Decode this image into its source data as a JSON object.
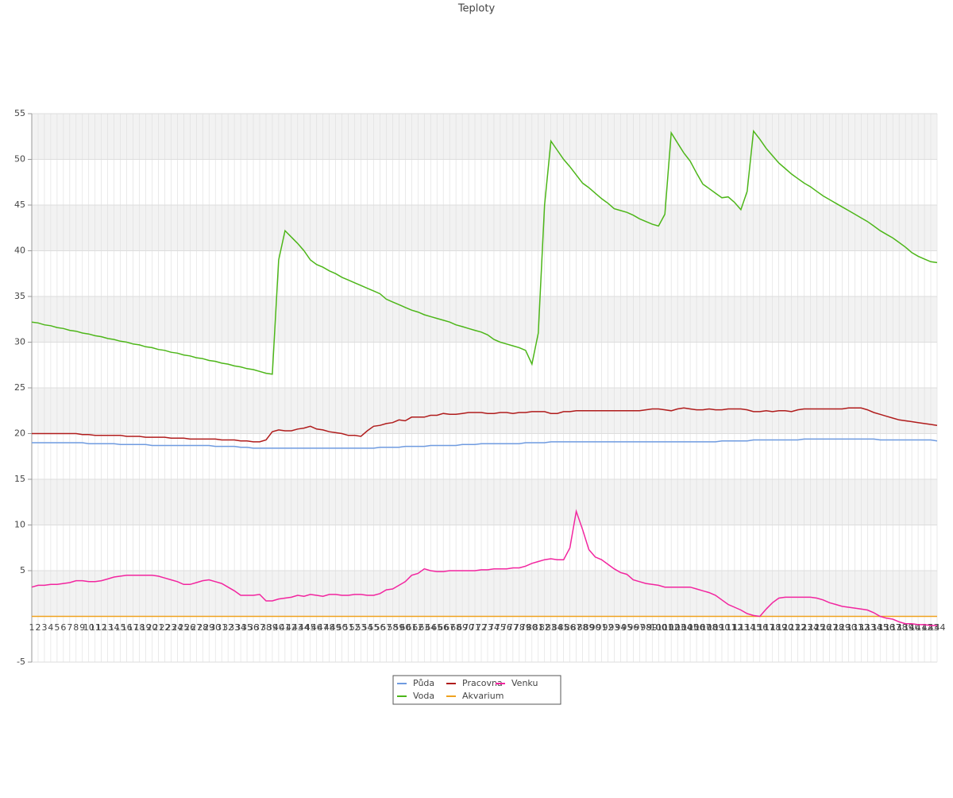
{
  "chart_data": {
    "type": "line",
    "title": "Teploty",
    "categories": [
      "1",
      "2",
      "3",
      "4",
      "5",
      "6",
      "7",
      "8",
      "9",
      "10",
      "11",
      "12",
      "13",
      "14",
      "15",
      "16",
      "17",
      "18",
      "19",
      "20",
      "21",
      "22",
      "23",
      "24",
      "25",
      "26",
      "27",
      "28",
      "29",
      "30",
      "31",
      "32",
      "33",
      "34",
      "35",
      "36",
      "37",
      "38",
      "39",
      "40",
      "41",
      "42",
      "43",
      "44",
      "45",
      "46",
      "47",
      "48",
      "49",
      "50",
      "51",
      "52",
      "53",
      "54",
      "55",
      "56",
      "57",
      "58",
      "59",
      "60",
      "61",
      "62",
      "63",
      "64",
      "65",
      "66",
      "67",
      "68",
      "69",
      "70",
      "71",
      "72",
      "73",
      "74",
      "75",
      "76",
      "77",
      "78",
      "79",
      "80",
      "81",
      "82",
      "83",
      "84",
      "85",
      "86",
      "87",
      "88",
      "89",
      "90",
      "91",
      "92",
      "93",
      "94",
      "95",
      "96",
      "97",
      "98",
      "99",
      "100",
      "101",
      "102",
      "103",
      "104",
      "105",
      "106",
      "107",
      "108",
      "109",
      "110",
      "111",
      "112",
      "113",
      "114",
      "115",
      "116",
      "117",
      "118",
      "119",
      "120",
      "121",
      "122",
      "123",
      "124",
      "125",
      "126",
      "127",
      "128",
      "129",
      "130",
      "131",
      "132",
      "133",
      "134",
      "135",
      "136",
      "137",
      "138",
      "139",
      "140",
      "141",
      "142",
      "143",
      "144"
    ],
    "series": [
      {
        "name": "Půda",
        "color": "#6f9be0",
        "values": [
          19,
          19,
          19,
          19,
          19,
          19,
          19,
          19,
          19,
          18.9,
          18.9,
          18.9,
          18.9,
          18.9,
          18.8,
          18.8,
          18.8,
          18.8,
          18.8,
          18.7,
          18.7,
          18.7,
          18.7,
          18.7,
          18.7,
          18.7,
          18.7,
          18.7,
          18.7,
          18.6,
          18.6,
          18.6,
          18.6,
          18.5,
          18.5,
          18.4,
          18.4,
          18.4,
          18.4,
          18.4,
          18.4,
          18.4,
          18.4,
          18.4,
          18.4,
          18.4,
          18.4,
          18.4,
          18.4,
          18.4,
          18.4,
          18.4,
          18.4,
          18.4,
          18.4,
          18.5,
          18.5,
          18.5,
          18.5,
          18.6,
          18.6,
          18.6,
          18.6,
          18.7,
          18.7,
          18.7,
          18.7,
          18.7,
          18.8,
          18.8,
          18.8,
          18.9,
          18.9,
          18.9,
          18.9,
          18.9,
          18.9,
          18.9,
          19,
          19,
          19,
          19,
          19.1,
          19.1,
          19.1,
          19.1,
          19.1,
          19.1,
          19.1,
          19.1,
          19.1,
          19.1,
          19.1,
          19.1,
          19.1,
          19.1,
          19.1,
          19.1,
          19.1,
          19.1,
          19.1,
          19.1,
          19.1,
          19.1,
          19.1,
          19.1,
          19.1,
          19.1,
          19.1,
          19.2,
          19.2,
          19.2,
          19.2,
          19.2,
          19.3,
          19.3,
          19.3,
          19.3,
          19.3,
          19.3,
          19.3,
          19.3,
          19.4,
          19.4,
          19.4,
          19.4,
          19.4,
          19.4,
          19.4,
          19.4,
          19.4,
          19.4,
          19.4,
          19.4,
          19.3,
          19.3,
          19.3,
          19.3,
          19.3,
          19.3,
          19.3,
          19.3,
          19.3,
          19.2
        ]
      },
      {
        "name": "Voda",
        "color": "#4db619",
        "values": [
          32.2,
          32.1,
          31.9,
          31.8,
          31.6,
          31.5,
          31.3,
          31.2,
          31.0,
          30.9,
          30.7,
          30.6,
          30.4,
          30.3,
          30.1,
          30.0,
          29.8,
          29.7,
          29.5,
          29.4,
          29.2,
          29.1,
          28.9,
          28.8,
          28.6,
          28.5,
          28.3,
          28.2,
          28.0,
          27.9,
          27.7,
          27.6,
          27.4,
          27.3,
          27.1,
          27.0,
          26.8,
          26.6,
          26.5,
          39,
          42.2,
          41.5,
          40.8,
          40,
          39,
          38.5,
          38.2,
          37.8,
          37.5,
          37.1,
          36.8,
          36.5,
          36.2,
          35.9,
          35.6,
          35.3,
          34.7,
          34.4,
          34.1,
          33.8,
          33.5,
          33.3,
          33.0,
          32.8,
          32.6,
          32.4,
          32.2,
          31.9,
          31.7,
          31.5,
          31.3,
          31.1,
          30.8,
          30.3,
          30.0,
          29.8,
          29.6,
          29.4,
          29.1,
          27.6,
          31,
          45,
          52,
          51,
          50,
          49.2,
          48.3,
          47.4,
          46.9,
          46.3,
          45.7,
          45.2,
          44.6,
          44.4,
          44.2,
          43.9,
          43.5,
          43.2,
          42.9,
          42.7,
          44,
          52.9,
          51.8,
          50.7,
          49.8,
          48.5,
          47.3,
          46.8,
          46.3,
          45.8,
          45.9,
          45.3,
          44.5,
          46.5,
          53.1,
          52.2,
          51.2,
          50.4,
          49.6,
          49,
          48.4,
          47.9,
          47.4,
          47,
          46.5,
          46,
          45.6,
          45.2,
          44.8,
          44.4,
          44,
          43.6,
          43.2,
          42.7,
          42.2,
          41.8,
          41.4,
          40.9,
          40.4,
          39.8,
          39.4,
          39.1,
          38.8,
          38.7
        ]
      },
      {
        "name": "Pracovna",
        "color": "#b01c1c",
        "values": [
          20,
          20,
          20,
          20,
          20,
          20,
          20,
          20,
          19.9,
          19.9,
          19.8,
          19.8,
          19.8,
          19.8,
          19.8,
          19.7,
          19.7,
          19.7,
          19.6,
          19.6,
          19.6,
          19.6,
          19.5,
          19.5,
          19.5,
          19.4,
          19.4,
          19.4,
          19.4,
          19.4,
          19.3,
          19.3,
          19.3,
          19.2,
          19.2,
          19.1,
          19.1,
          19.3,
          20.2,
          20.4,
          20.3,
          20.3,
          20.5,
          20.6,
          20.8,
          20.5,
          20.4,
          20.2,
          20.1,
          20.0,
          19.8,
          19.8,
          19.7,
          20.3,
          20.8,
          20.9,
          21.1,
          21.2,
          21.5,
          21.4,
          21.8,
          21.8,
          21.8,
          22.0,
          22.0,
          22.2,
          22.1,
          22.1,
          22.2,
          22.3,
          22.3,
          22.3,
          22.2,
          22.2,
          22.3,
          22.3,
          22.2,
          22.3,
          22.3,
          22.4,
          22.4,
          22.4,
          22.2,
          22.2,
          22.4,
          22.4,
          22.5,
          22.5,
          22.5,
          22.5,
          22.5,
          22.5,
          22.5,
          22.5,
          22.5,
          22.5,
          22.5,
          22.6,
          22.7,
          22.7,
          22.6,
          22.5,
          22.7,
          22.8,
          22.7,
          22.6,
          22.6,
          22.7,
          22.6,
          22.6,
          22.7,
          22.7,
          22.7,
          22.6,
          22.4,
          22.4,
          22.5,
          22.4,
          22.5,
          22.5,
          22.4,
          22.6,
          22.7,
          22.7,
          22.7,
          22.7,
          22.7,
          22.7,
          22.7,
          22.8,
          22.8,
          22.8,
          22.6,
          22.3,
          22.1,
          21.9,
          21.7,
          21.5,
          21.4,
          21.3,
          21.2,
          21.1,
          21.0,
          20.9
        ]
      },
      {
        "name": "Akvarium",
        "color": "#efa21f",
        "values": [
          0,
          0,
          0,
          0,
          0,
          0,
          0,
          0,
          0,
          0,
          0,
          0,
          0,
          0,
          0,
          0,
          0,
          0,
          0,
          0,
          0,
          0,
          0,
          0,
          0,
          0,
          0,
          0,
          0,
          0,
          0,
          0,
          0,
          0,
          0,
          0,
          0,
          0,
          0,
          0,
          0,
          0,
          0,
          0,
          0,
          0,
          0,
          0,
          0,
          0,
          0,
          0,
          0,
          0,
          0,
          0,
          0,
          0,
          0,
          0,
          0,
          0,
          0,
          0,
          0,
          0,
          0,
          0,
          0,
          0,
          0,
          0,
          0,
          0,
          0,
          0,
          0,
          0,
          0,
          0,
          0,
          0,
          0,
          0,
          0,
          0,
          0,
          0,
          0,
          0,
          0,
          0,
          0,
          0,
          0,
          0,
          0,
          0,
          0,
          0,
          0,
          0,
          0,
          0,
          0,
          0,
          0,
          0,
          0,
          0,
          0,
          0,
          0,
          0,
          0,
          0,
          0,
          0,
          0,
          0,
          0,
          0,
          0,
          0,
          0,
          0,
          0,
          0,
          0,
          0,
          0,
          0,
          0,
          0,
          0,
          0,
          0,
          0,
          0,
          0,
          0,
          0,
          0,
          0
        ]
      },
      {
        "name": "Venku",
        "color": "#f2259f",
        "values": [
          3.2,
          3.4,
          3.4,
          3.5,
          3.5,
          3.6,
          3.7,
          3.9,
          3.9,
          3.8,
          3.8,
          3.9,
          4.1,
          4.3,
          4.4,
          4.5,
          4.5,
          4.5,
          4.5,
          4.5,
          4.4,
          4.2,
          4.0,
          3.8,
          3.5,
          3.5,
          3.7,
          3.9,
          4.0,
          3.8,
          3.6,
          3.2,
          2.8,
          2.3,
          2.3,
          2.3,
          2.4,
          1.7,
          1.7,
          1.9,
          2.0,
          2.1,
          2.3,
          2.2,
          2.4,
          2.3,
          2.2,
          2.4,
          2.4,
          2.3,
          2.3,
          2.4,
          2.4,
          2.3,
          2.3,
          2.5,
          2.9,
          3.0,
          3.4,
          3.8,
          4.5,
          4.7,
          5.2,
          5.0,
          4.9,
          4.9,
          5.0,
          5.0,
          5.0,
          5.0,
          5.0,
          5.1,
          5.1,
          5.2,
          5.2,
          5.2,
          5.3,
          5.3,
          5.5,
          5.8,
          6.0,
          6.2,
          6.3,
          6.2,
          6.2,
          7.5,
          11.5,
          9.5,
          7.3,
          6.5,
          6.2,
          5.7,
          5.2,
          4.8,
          4.6,
          4.0,
          3.8,
          3.6,
          3.5,
          3.4,
          3.2,
          3.2,
          3.2,
          3.2,
          3.2,
          3.0,
          2.8,
          2.6,
          2.3,
          1.8,
          1.3,
          1.0,
          0.7,
          0.3,
          0.1,
          0,
          0.8,
          1.5,
          2.0,
          2.1,
          2.1,
          2.1,
          2.1,
          2.1,
          2.0,
          1.8,
          1.5,
          1.3,
          1.1,
          1.0,
          0.9,
          0.8,
          0.7,
          0.4,
          0.0,
          -0.2,
          -0.3,
          -0.6,
          -0.8,
          -0.8,
          -0.9,
          -0.9,
          -1.0,
          -1.0
        ]
      }
    ],
    "ylim": [
      -5,
      55
    ],
    "yticks": [
      -5,
      5,
      10,
      15,
      20,
      25,
      30,
      35,
      40,
      45,
      50,
      55
    ],
    "grid": true
  }
}
